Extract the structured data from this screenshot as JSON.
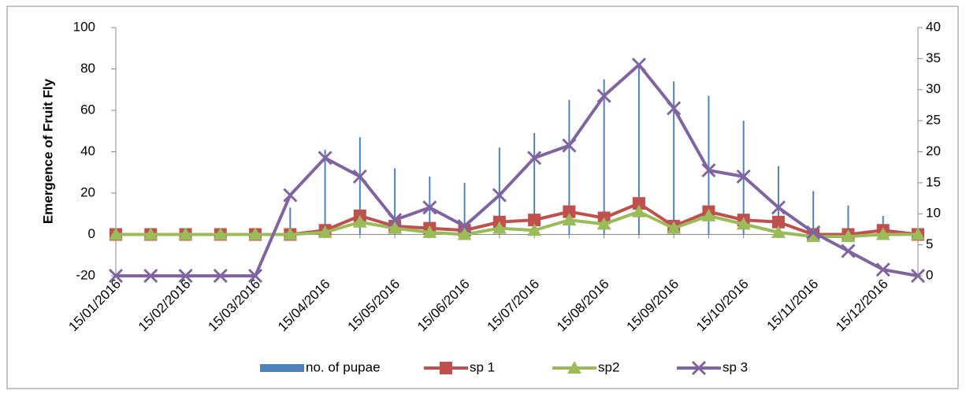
{
  "chart_data": {
    "type": "line",
    "y_label": "Emergence of Fruit Fly",
    "categories": [
      "15/01/2016",
      null,
      "15/02/2016",
      null,
      "15/03/2016",
      null,
      "15/04/2016",
      null,
      "15/05/2016",
      null,
      "15/06/2016",
      null,
      "15/07/2016",
      null,
      "15/08/2016",
      null,
      "15/09/2016",
      null,
      "15/10/2016",
      null,
      "15/11/2016",
      null,
      "15/12/2016",
      null
    ],
    "series": [
      {
        "name": "no. of pupae",
        "type": "bar",
        "color": "#4f81bd",
        "values": [
          0,
          0,
          0,
          0,
          0,
          13,
          41,
          47,
          32,
          28,
          25,
          42,
          49,
          65,
          75,
          81,
          74,
          67,
          55,
          33,
          21,
          14,
          9,
          0
        ]
      },
      {
        "name": "sp 1",
        "color": "#c0504d",
        "marker": "square",
        "values": [
          0,
          0,
          0,
          0,
          0,
          0,
          2,
          9,
          4,
          3,
          2,
          6,
          7,
          11,
          8,
          15,
          4,
          11,
          7,
          6,
          0,
          0,
          2,
          0
        ]
      },
      {
        "name": "sp2",
        "color": "#9bbb59",
        "marker": "triangle",
        "values": [
          0,
          0,
          0,
          0,
          0,
          0,
          1,
          6,
          3,
          1,
          0,
          3,
          2,
          7,
          5,
          11,
          3,
          9,
          5,
          1,
          -1,
          -1,
          0,
          0
        ]
      },
      {
        "name": "sp 3",
        "color": "#8064a2",
        "marker": "x",
        "axis": "y2",
        "values": [
          0,
          0,
          0,
          0,
          0,
          13,
          19,
          16,
          9,
          11,
          8,
          13,
          19,
          21,
          29,
          34,
          27,
          17,
          16,
          11,
          7,
          4,
          1,
          0
        ]
      }
    ],
    "ylim": [
      -20,
      100
    ],
    "yticks": [
      -20,
      0,
      20,
      40,
      60,
      80,
      100
    ],
    "y2lim": [
      0,
      40
    ],
    "y2ticks": [
      0,
      5,
      10,
      15,
      20,
      25,
      30,
      35,
      40
    ],
    "legend": "bottom"
  }
}
